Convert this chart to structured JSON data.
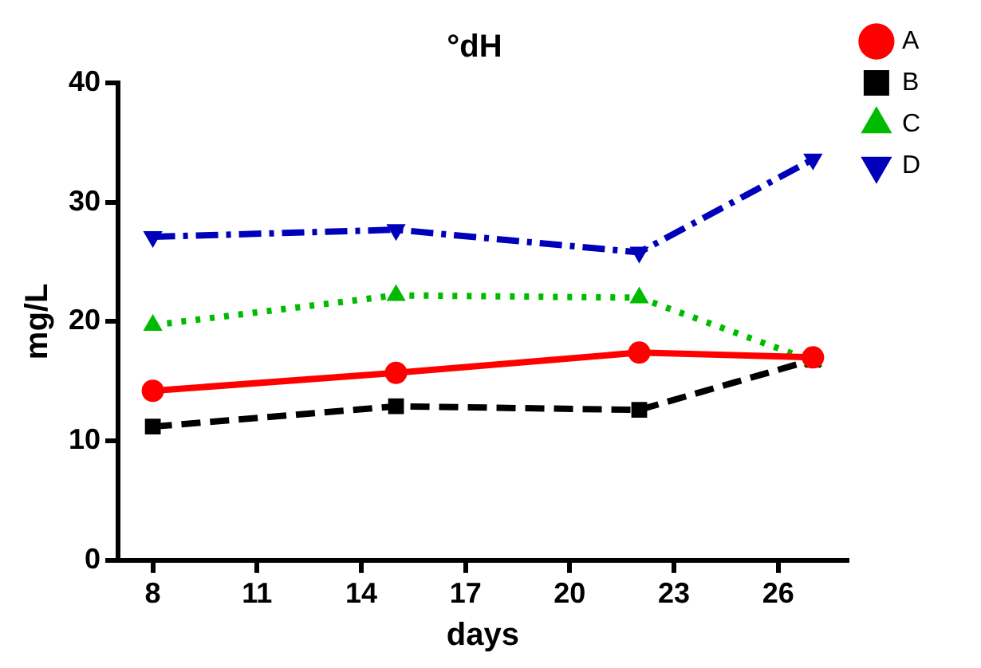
{
  "chart_data": {
    "type": "line",
    "title": "°dH",
    "xlabel": "days",
    "ylabel": "mg/L",
    "x": [
      8,
      15,
      22,
      27
    ],
    "xlim": [
      7,
      28
    ],
    "xticks": [
      8,
      11,
      14,
      17,
      20,
      23,
      26
    ],
    "ylim": [
      0,
      40
    ],
    "yticks": [
      0,
      10,
      20,
      30,
      40
    ],
    "grid": false,
    "legend": "right",
    "series": [
      {
        "name": "A",
        "color": "#ff0000",
        "values": [
          14.2,
          15.7,
          17.4,
          17.0
        ],
        "marker": "circle",
        "line_style": "solid"
      },
      {
        "name": "B",
        "color": "#000000",
        "values": [
          11.2,
          12.9,
          12.6,
          16.8
        ],
        "marker": "square",
        "line_style": "dashed"
      },
      {
        "name": "C",
        "color": "#00bb00",
        "values": [
          19.7,
          22.2,
          22.0,
          16.7
        ],
        "marker": "triangle",
        "line_style": "dotted"
      },
      {
        "name": "D",
        "color": "#0000bb",
        "values": [
          27.1,
          27.7,
          25.8,
          33.6
        ],
        "marker": "triangle-down",
        "line_style": "dashdot"
      }
    ]
  }
}
